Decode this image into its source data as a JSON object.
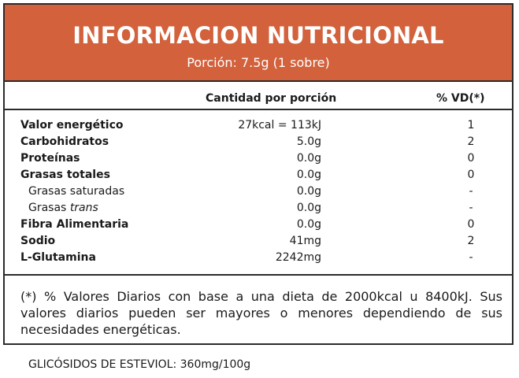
{
  "header": {
    "title": "INFORMACION NUTRICIONAL",
    "serving": "Porción: 7.5g (1 sobre)"
  },
  "columns": {
    "amount_label": "Cantidad por porción",
    "dv_label": "% VD(*)"
  },
  "rows": [
    {
      "name": "Valor energético",
      "name_italic": "",
      "amount": "27kcal = 113kJ",
      "dv": "1"
    },
    {
      "name": "Carbohidratos",
      "name_italic": "",
      "amount": "5.0g",
      "dv": "2"
    },
    {
      "name": "Proteínas",
      "name_italic": "",
      "amount": "0.0g",
      "dv": "0"
    },
    {
      "name": "Grasas totales",
      "name_italic": "",
      "amount": "0.0g",
      "dv": "0"
    },
    {
      "name": "Grasas saturadas",
      "name_italic": "",
      "amount": "0.0g",
      "dv": "-"
    },
    {
      "name": "Grasas ",
      "name_italic": "trans",
      "amount": "0.0g",
      "dv": "-"
    },
    {
      "name": "Fibra Alimentaria",
      "name_italic": "",
      "amount": "0.0g",
      "dv": "0"
    },
    {
      "name": "Sodio",
      "name_italic": "",
      "amount": "41mg",
      "dv": "2"
    },
    {
      "name": "L-Glutamina",
      "name_italic": "",
      "amount": "2242mg",
      "dv": "-"
    }
  ],
  "footnote": "(*) % Valores Diarios con base a una dieta de 2000kcal u 8400kJ. Sus valores diarios pueden ser mayores o menores dependiendo de sus necesidades energéticas.",
  "extra_note": "GLICÓSIDOS DE ESTEVIOL: 360mg/100g",
  "colors": {
    "header_bg": "#d2613c",
    "header_text": "#ffffff",
    "border": "#2b2b2b"
  }
}
